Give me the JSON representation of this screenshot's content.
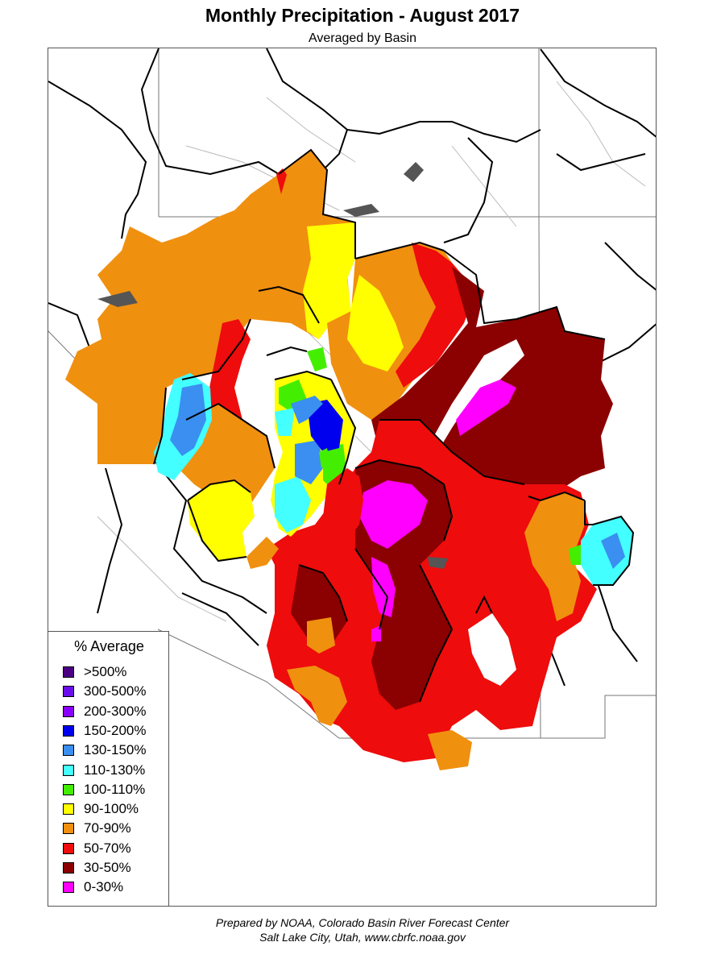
{
  "header": {
    "title": "Monthly Precipitation - August 2017",
    "subtitle": "Averaged by Basin"
  },
  "legend": {
    "title": "% Average",
    "items": [
      {
        "label": ">500%",
        "color": "#4b0082"
      },
      {
        "label": "300-500%",
        "color": "#6a0dea"
      },
      {
        "label": "200-300%",
        "color": "#8a00ff"
      },
      {
        "label": "150-200%",
        "color": "#0000ee"
      },
      {
        "label": "130-150%",
        "color": "#3a8ff0"
      },
      {
        "label": "110-130%",
        "color": "#44ffff"
      },
      {
        "label": "100-110%",
        "color": "#44ee00"
      },
      {
        "label": "90-100%",
        "color": "#ffff00"
      },
      {
        "label": "70-90%",
        "color": "#f0900f"
      },
      {
        "label": "50-70%",
        "color": "#ee0c0c"
      },
      {
        "label": "30-50%",
        "color": "#8b0000"
      },
      {
        "label": "0-30%",
        "color": "#ff00ff"
      }
    ]
  },
  "footer": {
    "line1": "Prepared by NOAA, Colorado Basin River Forecast Center",
    "line2": "Salt Lake City, Utah, www.cbrfc.noaa.gov"
  }
}
